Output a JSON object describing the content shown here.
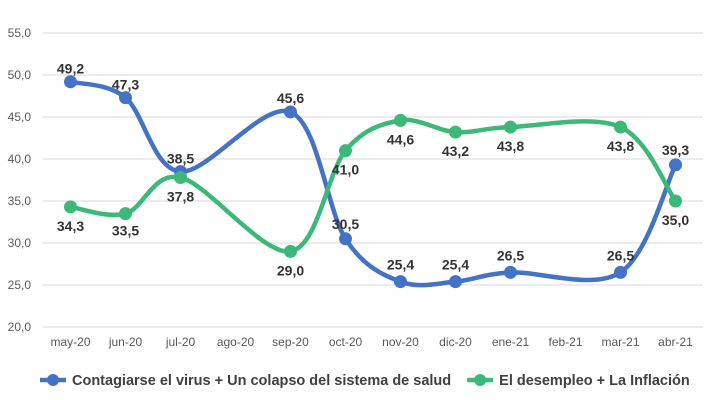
{
  "chart_data": {
    "type": "line",
    "title": "",
    "xlabel": "",
    "ylabel": "",
    "categories": [
      "may-20",
      "jun-20",
      "jul-20",
      "ago-20",
      "sep-20",
      "oct-20",
      "nov-20",
      "dic-20",
      "ene-21",
      "feb-21",
      "mar-21",
      "abr-21"
    ],
    "ylim": [
      20.0,
      55.0
    ],
    "yticks": [
      "20,0",
      "25,0",
      "30,0",
      "35,0",
      "40,0",
      "45,0",
      "50,0",
      "55,0"
    ],
    "grid": true,
    "legend_position": "bottom",
    "series": [
      {
        "name": "Contagiarse el virus + Un colapso del sistema de salud",
        "color": "#4472c4",
        "values": [
          49.2,
          47.3,
          38.5,
          null,
          45.6,
          30.5,
          25.4,
          25.4,
          26.5,
          null,
          26.5,
          39.3
        ],
        "labels": [
          "49,2",
          "47,3",
          "38,5",
          "",
          "45,6",
          "30,5",
          "25,4",
          "25,4",
          "26,5",
          "",
          "26,5",
          "39,3"
        ]
      },
      {
        "name": "El desempleo + La Inflación",
        "color": "#3cb878",
        "values": [
          34.3,
          33.5,
          37.8,
          null,
          29.0,
          41.0,
          44.6,
          43.2,
          43.8,
          null,
          43.8,
          35.0
        ],
        "labels": [
          "34,3",
          "33,5",
          "37,8",
          "",
          "29,0",
          "41,0",
          "44,6",
          "43,2",
          "43,8",
          "",
          "43,8",
          "35,0"
        ]
      }
    ]
  }
}
